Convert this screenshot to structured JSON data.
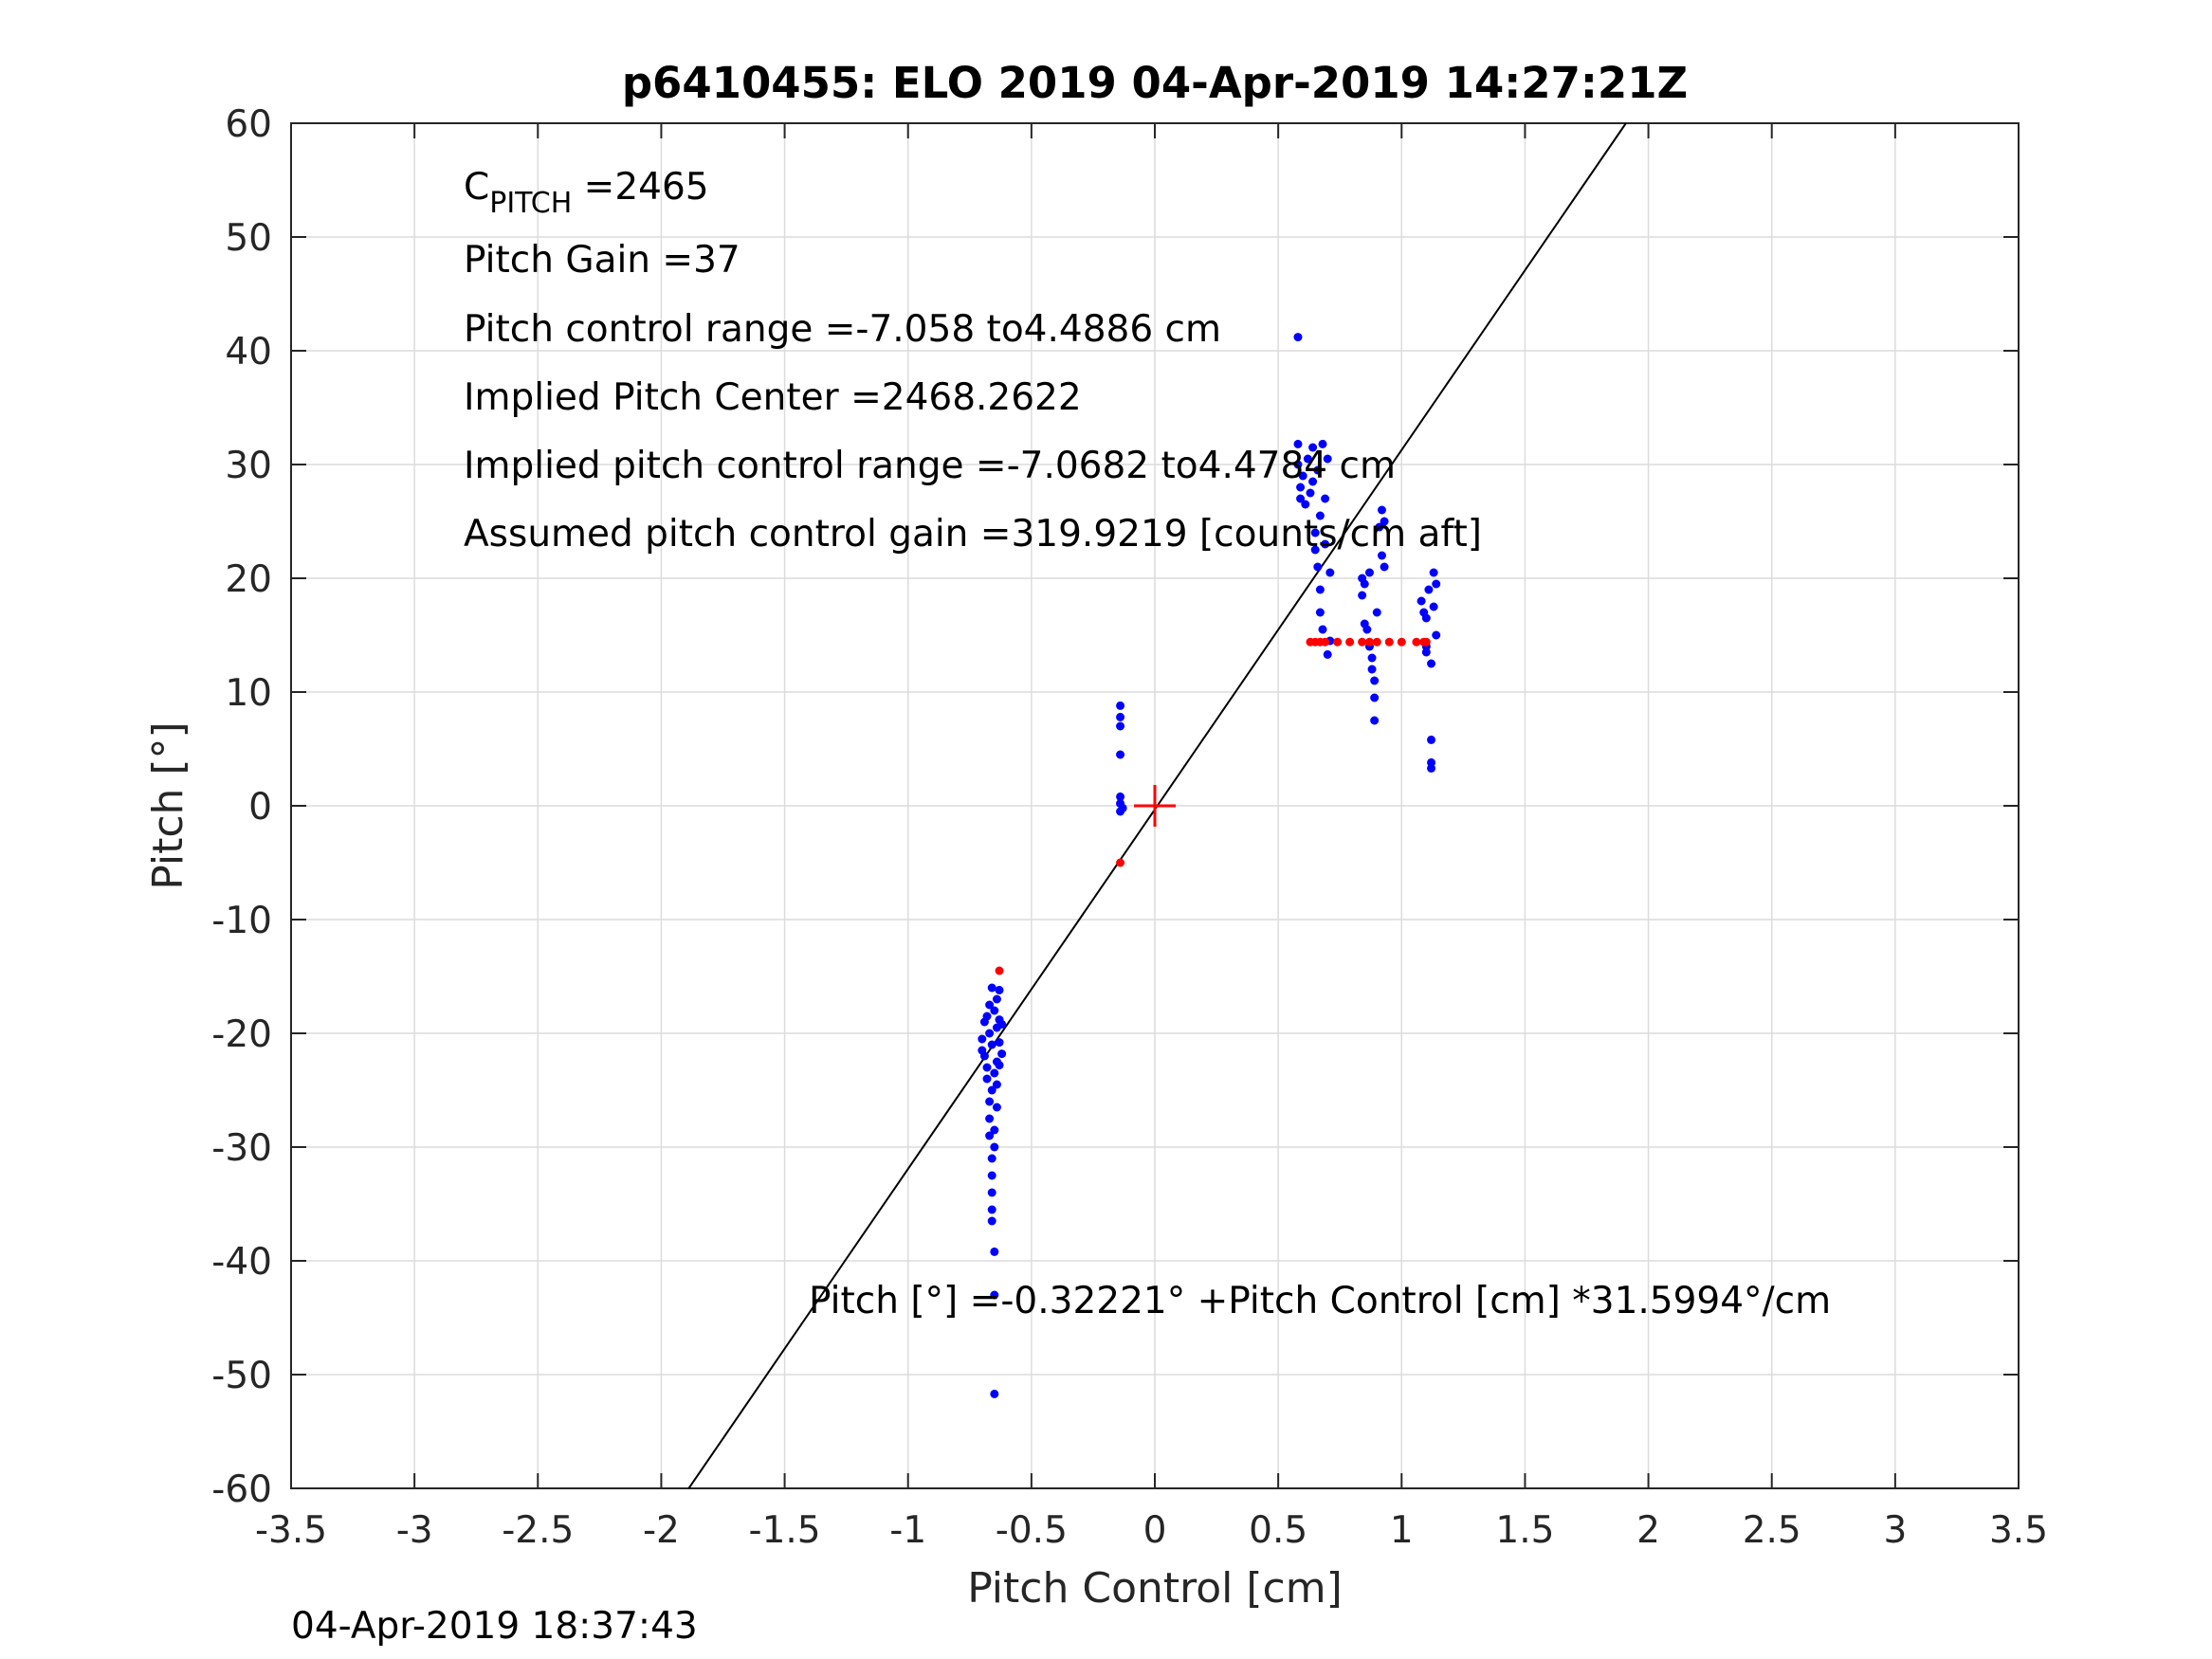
{
  "chart_data": {
    "type": "scatter",
    "title": "p6410455: ELO 2019 04-Apr-2019 14:27:21Z",
    "xlabel": "Pitch Control [cm]",
    "ylabel": "Pitch [°]",
    "xlim": [
      -3.5,
      3.5
    ],
    "ylim": [
      -60,
      60
    ],
    "xticks": [
      "-3.5",
      "-3",
      "-2.5",
      "-2",
      "-1.5",
      "-1",
      "-0.5",
      "0",
      "0.5",
      "1",
      "1.5",
      "2",
      "2.5",
      "3",
      "3.5"
    ],
    "yticks": [
      "60",
      "50",
      "40",
      "30",
      "20",
      "10",
      "0",
      "-10",
      "-20",
      "-30",
      "-40",
      "-50",
      "-60"
    ],
    "grid": true,
    "annotations": {
      "cpitch_symbol": "C",
      "cpitch_subscript": "PITCH",
      "cpitch_value": " =2465",
      "pitch_gain": "Pitch Gain =37",
      "control_range": "Pitch control range =-7.058 to4.4886 cm",
      "implied_center": "Implied Pitch Center =2468.2622",
      "implied_range": "Implied pitch control range =-7.0682 to4.4784 cm",
      "assumed_gain": "Assumed pitch control gain =319.9219 [counts/cm aft]",
      "fit_equation": "Pitch [°] =-0.32221° +Pitch Control [cm] *31.5994°/cm"
    },
    "fit_line": {
      "intercept": -0.32221,
      "slope": 31.5994
    },
    "center_marker": {
      "x": 0,
      "y": 0
    },
    "series": [
      {
        "color": "#0000ff",
        "points": [
          [
            -0.7,
            -21.5
          ],
          [
            -0.7,
            -20.5
          ],
          [
            -0.69,
            -22.0
          ],
          [
            -0.69,
            -19.0
          ],
          [
            -0.68,
            -24.0
          ],
          [
            -0.68,
            -23.0
          ],
          [
            -0.68,
            -18.5
          ],
          [
            -0.67,
            -26.0
          ],
          [
            -0.67,
            -27.5
          ],
          [
            -0.67,
            -29.0
          ],
          [
            -0.67,
            -17.5
          ],
          [
            -0.67,
            -20.0
          ],
          [
            -0.66,
            -31.0
          ],
          [
            -0.66,
            -32.5
          ],
          [
            -0.66,
            -34.0
          ],
          [
            -0.66,
            -35.5
          ],
          [
            -0.66,
            -36.5
          ],
          [
            -0.66,
            -16.0
          ],
          [
            -0.66,
            -21.0
          ],
          [
            -0.66,
            -25.0
          ],
          [
            -0.65,
            -28.5
          ],
          [
            -0.65,
            -30.0
          ],
          [
            -0.65,
            -23.5
          ],
          [
            -0.65,
            -18.0
          ],
          [
            -0.65,
            -39.2
          ],
          [
            -0.65,
            -43.0
          ],
          [
            -0.65,
            -51.7
          ],
          [
            -0.64,
            -22.5
          ],
          [
            -0.64,
            -24.5
          ],
          [
            -0.64,
            -26.5
          ],
          [
            -0.64,
            -19.5
          ],
          [
            -0.64,
            -17.0
          ],
          [
            -0.63,
            -20.8
          ],
          [
            -0.63,
            -22.8
          ],
          [
            -0.63,
            -18.8
          ],
          [
            -0.63,
            -16.2
          ],
          [
            -0.62,
            -19.2
          ],
          [
            -0.62,
            -21.8
          ],
          [
            -0.14,
            8.8
          ],
          [
            -0.14,
            7.8
          ],
          [
            -0.14,
            7.0
          ],
          [
            -0.14,
            4.5
          ],
          [
            -0.14,
            0.8
          ],
          [
            -0.14,
            0.2
          ],
          [
            -0.14,
            -0.5
          ],
          [
            -0.13,
            -0.2
          ],
          [
            0.58,
            41.2
          ],
          [
            0.58,
            31.8
          ],
          [
            0.58,
            30.0
          ],
          [
            0.59,
            28.0
          ],
          [
            0.59,
            27.0
          ],
          [
            0.6,
            29.0
          ],
          [
            0.61,
            26.5
          ],
          [
            0.62,
            30.5
          ],
          [
            0.63,
            27.5
          ],
          [
            0.64,
            31.5
          ],
          [
            0.64,
            28.5
          ],
          [
            0.65,
            24.0
          ],
          [
            0.65,
            22.5
          ],
          [
            0.66,
            21.0
          ],
          [
            0.66,
            29.5
          ],
          [
            0.67,
            25.5
          ],
          [
            0.67,
            19.0
          ],
          [
            0.67,
            17.0
          ],
          [
            0.68,
            15.5
          ],
          [
            0.68,
            31.8
          ],
          [
            0.69,
            27.0
          ],
          [
            0.69,
            23.0
          ],
          [
            0.7,
            30.5
          ],
          [
            0.7,
            13.3
          ],
          [
            0.71,
            20.5
          ],
          [
            0.71,
            14.5
          ],
          [
            0.84,
            20.0
          ],
          [
            0.84,
            18.5
          ],
          [
            0.85,
            19.5
          ],
          [
            0.85,
            16.0
          ],
          [
            0.86,
            15.5
          ],
          [
            0.87,
            20.5
          ],
          [
            0.87,
            14.0
          ],
          [
            0.88,
            13.0
          ],
          [
            0.88,
            12.0
          ],
          [
            0.89,
            11.0
          ],
          [
            0.89,
            9.5
          ],
          [
            0.89,
            7.5
          ],
          [
            0.9,
            17.0
          ],
          [
            0.91,
            24.5
          ],
          [
            0.92,
            26.0
          ],
          [
            0.92,
            22.0
          ],
          [
            0.93,
            21.0
          ],
          [
            0.93,
            25.0
          ],
          [
            1.08,
            18.0
          ],
          [
            1.09,
            17.0
          ],
          [
            1.1,
            16.5
          ],
          [
            1.1,
            14.0
          ],
          [
            1.1,
            13.5
          ],
          [
            1.11,
            19.0
          ],
          [
            1.12,
            12.5
          ],
          [
            1.12,
            5.8
          ],
          [
            1.12,
            3.8
          ],
          [
            1.12,
            3.3
          ],
          [
            1.13,
            20.5
          ],
          [
            1.13,
            17.5
          ],
          [
            1.14,
            15.0
          ],
          [
            1.14,
            19.5
          ]
        ]
      },
      {
        "color": "#ff0000",
        "points": [
          [
            -0.63,
            -14.5
          ],
          [
            -0.14,
            -5.0
          ],
          [
            0.63,
            14.4
          ],
          [
            0.65,
            14.4
          ],
          [
            0.67,
            14.4
          ],
          [
            0.69,
            14.4
          ],
          [
            0.74,
            14.4
          ],
          [
            0.79,
            14.4
          ],
          [
            0.84,
            14.4
          ],
          [
            0.87,
            14.4
          ],
          [
            0.9,
            14.4
          ],
          [
            0.95,
            14.4
          ],
          [
            1.0,
            14.4
          ],
          [
            1.06,
            14.4
          ],
          [
            1.09,
            14.4
          ],
          [
            1.1,
            14.4
          ]
        ]
      }
    ]
  },
  "timestamp": "04-Apr-2019 18:37:43"
}
